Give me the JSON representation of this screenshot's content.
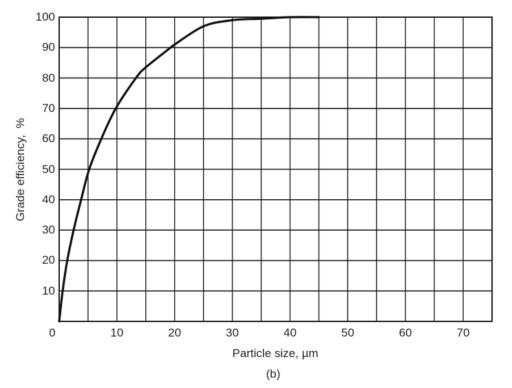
{
  "chart_data": {
    "type": "line",
    "title": "",
    "caption": "(b)",
    "xlabel": "Particle size, µm",
    "ylabel": "Grade efficiency,  %",
    "xlim": [
      0,
      75
    ],
    "ylim": [
      0,
      100
    ],
    "grid": true,
    "x_major_ticks": [
      0,
      10,
      20,
      30,
      40,
      50,
      60,
      70
    ],
    "x_minor_gridlines": [
      5,
      15,
      25,
      35,
      45,
      55,
      65
    ],
    "y_ticks": [
      10,
      20,
      30,
      40,
      50,
      60,
      70,
      80,
      90,
      100
    ],
    "x_tick_labels": [
      "0",
      "10",
      "20",
      "30",
      "40",
      "50",
      "60",
      "70"
    ],
    "y_tick_labels": [
      "10",
      "20",
      "30",
      "40",
      "50",
      "60",
      "70",
      "80",
      "90",
      "100"
    ],
    "legend": null,
    "series": [
      {
        "name": "Grade efficiency",
        "color": "#111111",
        "x": [
          0,
          0.6,
          1.4,
          2.5,
          3.8,
          5.2,
          7.3,
          9.8,
          13.3,
          15,
          19.3,
          20,
          25,
          30,
          35,
          40,
          45
        ],
        "y": [
          0,
          10,
          20,
          30,
          40,
          50,
          60,
          70,
          80,
          83.5,
          90,
          91,
          97,
          99,
          99.5,
          100,
          100
        ]
      }
    ]
  },
  "colors": {
    "grid": "#1e1e1e",
    "curve": "#111111",
    "background": "#ffffff"
  }
}
